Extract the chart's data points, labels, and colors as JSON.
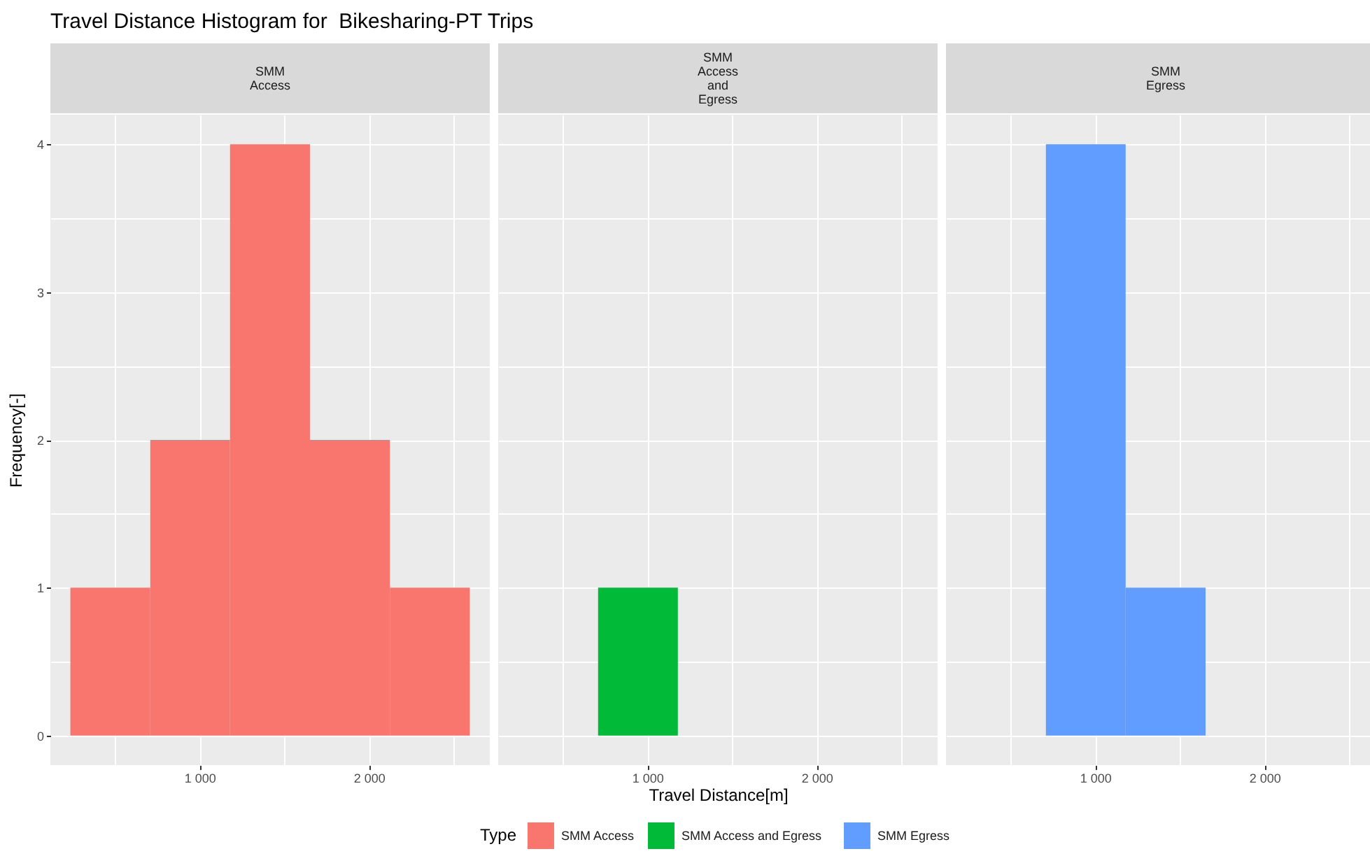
{
  "chart_data": [
    {
      "type": "histogram",
      "title": "Travel Distance Histogram for  Bikesharing-PT Trips",
      "subtitle": "SMM\nAccess",
      "ylabel": "Frequency[-]",
      "legend_title": "Type",
      "legend": "bottom",
      "grid": "xy",
      "bins": [
        237,
        709,
        1180,
        1652,
        2124,
        2596
      ],
      "series": [
        {
          "name": "SMM Access",
          "color": "#f8766d",
          "values": [
            1,
            2,
            4,
            2,
            1
          ]
        }
      ],
      "xlim": [
        119,
        2714
      ],
      "xticks": [
        {
          "value": 500,
          "label": null
        },
        {
          "value": 1000,
          "label": "1 000"
        },
        {
          "value": 1500,
          "label": null
        },
        {
          "value": 2000,
          "label": "2 000"
        },
        {
          "value": 2500,
          "label": null
        }
      ],
      "ylim": [
        -0.2,
        4.2
      ],
      "yticks": [
        0,
        {
          "value": 0.5,
          "label": null
        },
        1,
        {
          "value": 1.5,
          "label": null
        },
        2,
        {
          "value": 2.5,
          "label": null
        },
        3,
        {
          "value": 3.5,
          "label": null
        },
        4
      ]
    },
    {
      "type": "histogram",
      "subtitle": "SMM\nAccess\nand\nEgress",
      "xlabel": "Travel Distance[m]",
      "legend": "bottom",
      "grid": "xy",
      "tick_labels": "x",
      "bins": [
        709,
        1180
      ],
      "series": [
        {
          "name": "SMM Access and Egress",
          "color": "#00ba38",
          "values": [
            1
          ]
        }
      ],
      "xlim": [
        119,
        2714
      ],
      "xticks": [
        {
          "value": 500,
          "label": null
        },
        {
          "value": 1000,
          "label": "1 000"
        },
        {
          "value": 1500,
          "label": null
        },
        {
          "value": 2000,
          "label": "2 000"
        },
        {
          "value": 2500,
          "label": null
        }
      ],
      "ylim": [
        -0.2,
        4.2
      ],
      "yticks": [
        0,
        {
          "value": 0.5,
          "label": null
        },
        1,
        {
          "value": 1.5,
          "label": null
        },
        2,
        {
          "value": 2.5,
          "label": null
        },
        3,
        {
          "value": 3.5,
          "label": null
        },
        4
      ]
    },
    {
      "type": "histogram",
      "subtitle": "SMM\nEgress",
      "legend": "bottom",
      "grid": "xy",
      "tick_labels": "x",
      "bins": [
        709,
        1180,
        1652
      ],
      "series": [
        {
          "name": "SMM Egress",
          "color": "#619cff",
          "values": [
            4,
            1
          ]
        }
      ],
      "xlim": [
        119,
        2714
      ],
      "xticks": [
        {
          "value": 500,
          "label": null
        },
        {
          "value": 1000,
          "label": "1 000"
        },
        {
          "value": 1500,
          "label": null
        },
        {
          "value": 2000,
          "label": "2 000"
        },
        {
          "value": 2500,
          "label": null
        }
      ],
      "ylim": [
        -0.2,
        4.2
      ],
      "yticks": [
        0,
        {
          "value": 0.5,
          "label": null
        },
        1,
        {
          "value": 1.5,
          "label": null
        },
        2,
        {
          "value": 2.5,
          "label": null
        },
        3,
        {
          "value": 3.5,
          "label": null
        },
        4
      ]
    }
  ]
}
